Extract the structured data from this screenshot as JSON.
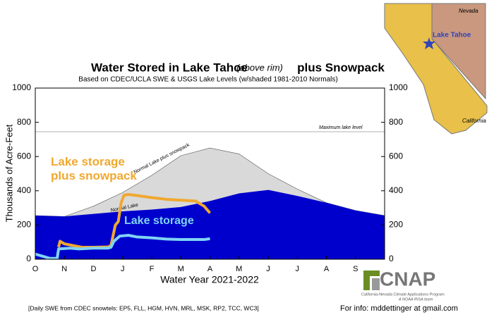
{
  "chart_data": {
    "type": "area",
    "title": "Water Stored in Lake Tahoe",
    "title_note": "(above rim)",
    "title_tail": "plus Snowpack",
    "subtitle": "Based on CDEC/UCLA SWE & USGS Lake Levels (w/shaded 1981-2010 Normals)",
    "y_label": "Thousands of Acre-Feet",
    "x_label": "Water Year 2021-2022",
    "xlim": [
      0,
      12
    ],
    "xticks": [
      {
        "value": 0,
        "label": "O"
      },
      {
        "value": 1,
        "label": "N"
      },
      {
        "value": 2,
        "label": "D"
      },
      {
        "value": 3,
        "label": "J"
      },
      {
        "value": 4,
        "label": "F"
      },
      {
        "value": 5,
        "label": "M"
      },
      {
        "value": 6,
        "label": "A"
      },
      {
        "value": 7,
        "label": "M"
      },
      {
        "value": 8,
        "label": "J"
      },
      {
        "value": 9,
        "label": "J"
      },
      {
        "value": 10,
        "label": "A"
      },
      {
        "value": 11,
        "label": "S"
      }
    ],
    "ylim": [
      0,
      1000
    ],
    "yticks": [
      0,
      200,
      400,
      600,
      800,
      1000
    ],
    "max_lake_level": 745,
    "max_lake_label": "Maximum lake level",
    "series": [
      {
        "name": "Normal Lake plus snowpack",
        "color": "#d9d9d9",
        "kind": "area",
        "x": [
          0,
          1,
          2,
          3,
          4,
          5,
          6,
          7,
          8,
          9,
          10,
          11,
          12
        ],
        "values": [
          255,
          250,
          310,
          390,
          490,
          605,
          650,
          615,
          500,
          410,
          330,
          285,
          255
        ]
      },
      {
        "name": "Normal Lake",
        "color": "#0000cc",
        "kind": "area",
        "x": [
          0,
          1,
          2,
          3,
          4,
          5,
          6,
          7,
          8,
          9,
          10,
          11,
          12
        ],
        "values": [
          255,
          250,
          265,
          280,
          290,
          305,
          340,
          385,
          405,
          370,
          330,
          285,
          255
        ]
      },
      {
        "name": "Lake storage plus snowpack",
        "color": "#f0a830",
        "kind": "line",
        "x": [
          0.8,
          0.85,
          1.0,
          1.3,
          1.6,
          2.0,
          2.5,
          2.6,
          2.75,
          2.85,
          2.95,
          3.05,
          3.2,
          3.5,
          4.0,
          4.5,
          5.0,
          5.5,
          5.8,
          6.0
        ],
        "values": [
          70,
          105,
          90,
          80,
          70,
          70,
          72,
          80,
          200,
          220,
          330,
          375,
          378,
          372,
          360,
          350,
          345,
          340,
          310,
          270
        ]
      },
      {
        "name": "Lake storage",
        "color": "#7fd4f5",
        "kind": "line",
        "x": [
          0,
          0.3,
          0.5,
          0.75,
          0.8,
          1.2,
          1.5,
          2.0,
          2.5,
          2.6,
          2.7,
          2.9,
          3.2,
          3.5,
          4.0,
          4.5,
          5.0,
          5.5,
          5.8,
          6.0
        ],
        "values": [
          30,
          15,
          5,
          5,
          60,
          65,
          60,
          65,
          65,
          70,
          105,
          135,
          140,
          130,
          125,
          118,
          115,
          115,
          115,
          120
        ]
      }
    ],
    "footnote": "[Daily SWE from CDEC snowtels: EP5, FLL, HGM, HVN, MRL, MSK, RP2, TCC, WC3]",
    "contact": "For info: mddettinger at gmail.com",
    "logo": {
      "name": "CNAP",
      "line1": "California-Nevada Climate Applications Program",
      "line2": "A NOAA RISA team"
    },
    "map": {
      "nevada": "Nevada",
      "lake": "Lake Tahoe",
      "california": "California"
    }
  }
}
